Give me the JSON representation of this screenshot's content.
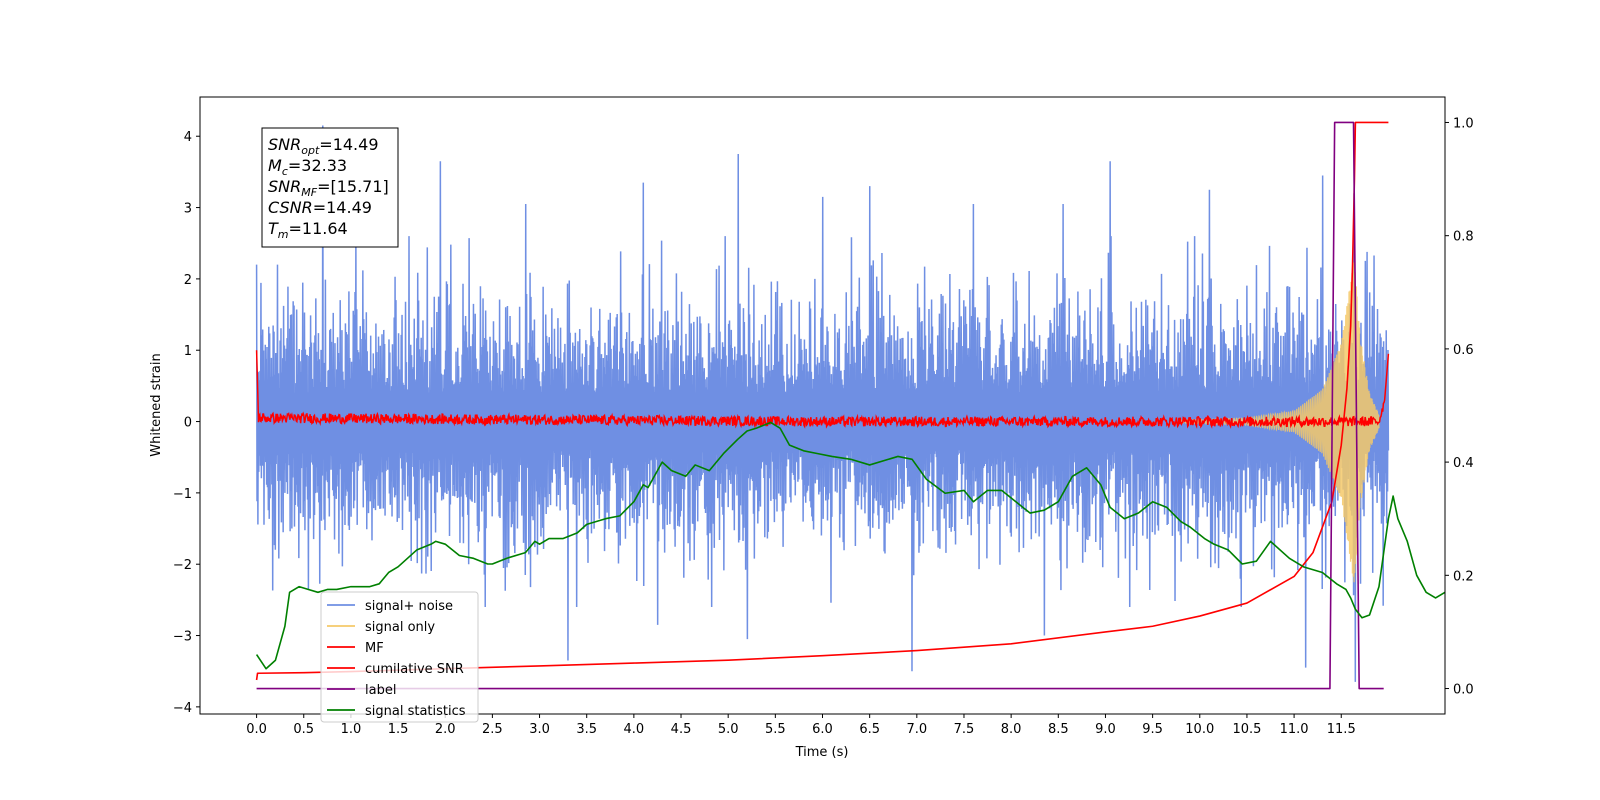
{
  "chart_data": {
    "type": "line",
    "xlabel": "Time (s)",
    "ylabel": "Whitened strain",
    "xlim": [
      -0.6,
      12.6
    ],
    "ylim": [
      -4.1,
      4.55
    ],
    "y2lim": [
      -0.045,
      1.045
    ],
    "x_ticks": [
      0.0,
      0.5,
      1.0,
      1.5,
      2.0,
      2.5,
      3.0,
      3.5,
      4.0,
      4.5,
      5.0,
      5.5,
      6.0,
      6.5,
      7.0,
      7.5,
      8.0,
      8.5,
      9.0,
      9.5,
      10.0,
      10.5,
      11.0,
      11.5
    ],
    "x_tick_labels": [
      "0.0",
      "0.5",
      "1.0",
      "1.5",
      "2.0",
      "2.5",
      "3.0",
      "3.5",
      "4.0",
      "4.5",
      "5.0",
      "5.5",
      "6.0",
      "6.5",
      "7.0",
      "7.5",
      "8.0",
      "8.5",
      "9.0",
      "9.5",
      "10.0",
      "10.5",
      "11.0",
      "11.5"
    ],
    "y_ticks": [
      -4,
      -3,
      -2,
      -1,
      0,
      1,
      2,
      3,
      4
    ],
    "y_tick_labels": [
      "−4",
      "−3",
      "−2",
      "−1",
      "0",
      "1",
      "2",
      "3",
      "4"
    ],
    "y2_ticks": [
      0.0,
      0.2,
      0.4,
      0.6,
      0.8,
      1.0
    ],
    "y2_tick_labels": [
      "0.0",
      "0.2",
      "0.4",
      "0.6",
      "0.8",
      "1.0"
    ],
    "legend_position": "lower-left",
    "annotation": {
      "lines": [
        {
          "base": "SNR",
          "sub": "opt",
          "value": "=14.49"
        },
        {
          "base": "M",
          "sub": "c",
          "value": "=32.33"
        },
        {
          "base": "SNR",
          "sub": "MF",
          "value": "=[15.71]"
        },
        {
          "base": "CSNR",
          "sub": "",
          "value": "=14.49"
        },
        {
          "base": "T",
          "sub": "m",
          "value": "=11.64"
        }
      ]
    },
    "series": [
      {
        "name": "signal+ noise",
        "color": "#6f8fe3",
        "axis": "left",
        "style": "noise",
        "x_range": [
          0.0,
          12.0
        ],
        "envelope": [
          -2.6,
          2.6
        ],
        "peaks": [
          [
            0.0,
            2.2
          ],
          [
            0.22,
            2.2
          ],
          [
            0.7,
            4.15
          ],
          [
            1.05,
            2.6
          ],
          [
            1.95,
            3.65
          ],
          [
            2.85,
            3.05
          ],
          [
            4.1,
            3.35
          ],
          [
            5.1,
            3.75
          ],
          [
            6.0,
            3.15
          ],
          [
            6.5,
            3.3
          ],
          [
            7.6,
            3.05
          ],
          [
            8.55,
            3.05
          ],
          [
            9.05,
            3.65
          ],
          [
            10.1,
            3.25
          ],
          [
            11.3,
            3.45
          ],
          [
            11.63,
            3.2
          ]
        ],
        "troughs": [
          [
            0.55,
            -2.35
          ],
          [
            3.3,
            -3.35
          ],
          [
            4.25,
            -2.85
          ],
          [
            5.2,
            -3.05
          ],
          [
            6.95,
            -3.5
          ],
          [
            8.35,
            -3.0
          ],
          [
            11.12,
            -3.45
          ],
          [
            11.65,
            -3.65
          ]
        ]
      },
      {
        "name": "signal only",
        "color": "#f5c96a",
        "axis": "left",
        "style": "chirp",
        "x_range": [
          9.8,
          11.9
        ],
        "points": [
          [
            9.8,
            0.02
          ],
          [
            10.5,
            0.05
          ],
          [
            11.0,
            0.15
          ],
          [
            11.3,
            0.45
          ],
          [
            11.5,
            1.1
          ],
          [
            11.6,
            2.0
          ],
          [
            11.64,
            2.3
          ],
          [
            11.7,
            1.2
          ],
          [
            11.8,
            0.4
          ],
          [
            11.9,
            0.1
          ]
        ]
      },
      {
        "name": "MF",
        "color": "#ff0000",
        "axis": "left",
        "style": "jitter",
        "x_range": [
          0.0,
          12.0
        ],
        "amplitude": 0.07,
        "points": [
          [
            0.0,
            1.0
          ],
          [
            0.02,
            0.05
          ],
          [
            6.0,
            0.0
          ],
          [
            11.9,
            0.0
          ],
          [
            11.96,
            0.3
          ],
          [
            12.0,
            0.95
          ]
        ]
      },
      {
        "name": "cumilative SNR",
        "color": "#ff0000",
        "axis": "right",
        "style": "line",
        "points": [
          [
            0.0,
            0.015
          ],
          [
            0.01,
            0.027
          ],
          [
            0.5,
            0.028
          ],
          [
            1.0,
            0.03
          ],
          [
            2.0,
            0.035
          ],
          [
            3.0,
            0.04
          ],
          [
            4.0,
            0.045
          ],
          [
            5.0,
            0.05
          ],
          [
            6.0,
            0.058
          ],
          [
            7.0,
            0.067
          ],
          [
            8.0,
            0.079
          ],
          [
            9.0,
            0.1
          ],
          [
            9.5,
            0.11
          ],
          [
            10.0,
            0.128
          ],
          [
            10.5,
            0.151
          ],
          [
            11.0,
            0.198
          ],
          [
            11.2,
            0.24
          ],
          [
            11.4,
            0.33
          ],
          [
            11.5,
            0.43
          ],
          [
            11.56,
            0.53
          ],
          [
            11.6,
            0.64
          ],
          [
            11.62,
            0.75
          ],
          [
            11.64,
            0.9
          ],
          [
            11.65,
            1.0
          ],
          [
            12.0,
            1.0
          ]
        ]
      },
      {
        "name": "label",
        "color": "#800080",
        "axis": "right",
        "style": "line",
        "points": [
          [
            0.0,
            0.0
          ],
          [
            11.38,
            0.0
          ],
          [
            11.43,
            1.0
          ],
          [
            11.63,
            1.0
          ],
          [
            11.69,
            0.0
          ],
          [
            11.95,
            0.0
          ]
        ]
      },
      {
        "name": "signal statistics",
        "color": "#008000",
        "axis": "right",
        "style": "line",
        "points": [
          [
            0.0,
            0.06
          ],
          [
            0.1,
            0.035
          ],
          [
            0.2,
            0.05
          ],
          [
            0.3,
            0.11
          ],
          [
            0.35,
            0.17
          ],
          [
            0.45,
            0.18
          ],
          [
            0.55,
            0.175
          ],
          [
            0.65,
            0.17
          ],
          [
            0.75,
            0.175
          ],
          [
            0.85,
            0.175
          ],
          [
            1.0,
            0.18
          ],
          [
            1.2,
            0.18
          ],
          [
            1.3,
            0.185
          ],
          [
            1.4,
            0.205
          ],
          [
            1.5,
            0.215
          ],
          [
            1.6,
            0.23
          ],
          [
            1.7,
            0.245
          ],
          [
            1.85,
            0.255
          ],
          [
            1.9,
            0.26
          ],
          [
            2.0,
            0.255
          ],
          [
            2.15,
            0.235
          ],
          [
            2.3,
            0.23
          ],
          [
            2.45,
            0.22
          ],
          [
            2.5,
            0.22
          ],
          [
            2.65,
            0.23
          ],
          [
            2.85,
            0.24
          ],
          [
            2.95,
            0.26
          ],
          [
            3.0,
            0.255
          ],
          [
            3.1,
            0.265
          ],
          [
            3.25,
            0.265
          ],
          [
            3.4,
            0.275
          ],
          [
            3.5,
            0.29
          ],
          [
            3.7,
            0.3
          ],
          [
            3.85,
            0.305
          ],
          [
            4.0,
            0.33
          ],
          [
            4.1,
            0.36
          ],
          [
            4.15,
            0.355
          ],
          [
            4.3,
            0.4
          ],
          [
            4.4,
            0.385
          ],
          [
            4.55,
            0.375
          ],
          [
            4.65,
            0.395
          ],
          [
            4.8,
            0.385
          ],
          [
            4.95,
            0.415
          ],
          [
            5.1,
            0.44
          ],
          [
            5.2,
            0.455
          ],
          [
            5.3,
            0.46
          ],
          [
            5.45,
            0.47
          ],
          [
            5.55,
            0.46
          ],
          [
            5.65,
            0.43
          ],
          [
            5.8,
            0.42
          ],
          [
            5.95,
            0.415
          ],
          [
            6.1,
            0.41
          ],
          [
            6.3,
            0.405
          ],
          [
            6.5,
            0.395
          ],
          [
            6.7,
            0.405
          ],
          [
            6.8,
            0.41
          ],
          [
            6.95,
            0.405
          ],
          [
            7.1,
            0.37
          ],
          [
            7.3,
            0.345
          ],
          [
            7.5,
            0.35
          ],
          [
            7.6,
            0.33
          ],
          [
            7.75,
            0.35
          ],
          [
            7.9,
            0.35
          ],
          [
            8.05,
            0.33
          ],
          [
            8.2,
            0.31
          ],
          [
            8.35,
            0.315
          ],
          [
            8.5,
            0.33
          ],
          [
            8.65,
            0.375
          ],
          [
            8.8,
            0.39
          ],
          [
            8.95,
            0.36
          ],
          [
            9.05,
            0.32
          ],
          [
            9.2,
            0.3
          ],
          [
            9.35,
            0.31
          ],
          [
            9.5,
            0.33
          ],
          [
            9.65,
            0.32
          ],
          [
            9.8,
            0.295
          ],
          [
            9.9,
            0.285
          ],
          [
            10.05,
            0.265
          ],
          [
            10.15,
            0.255
          ],
          [
            10.3,
            0.245
          ],
          [
            10.45,
            0.22
          ],
          [
            10.6,
            0.225
          ],
          [
            10.75,
            0.26
          ],
          [
            10.95,
            0.23
          ],
          [
            11.1,
            0.215
          ],
          [
            11.3,
            0.205
          ],
          [
            11.45,
            0.185
          ],
          [
            11.55,
            0.175
          ],
          [
            11.6,
            0.16
          ],
          [
            11.65,
            0.14
          ],
          [
            11.72,
            0.125
          ],
          [
            11.8,
            0.13
          ],
          [
            11.9,
            0.18
          ],
          [
            11.95,
            0.24
          ],
          [
            12.0,
            0.3
          ],
          [
            12.05,
            0.34
          ],
          [
            12.1,
            0.3
          ],
          [
            12.2,
            0.26
          ],
          [
            12.3,
            0.2
          ],
          [
            12.4,
            0.17
          ],
          [
            12.5,
            0.16
          ],
          [
            12.6,
            0.17
          ]
        ]
      }
    ]
  }
}
